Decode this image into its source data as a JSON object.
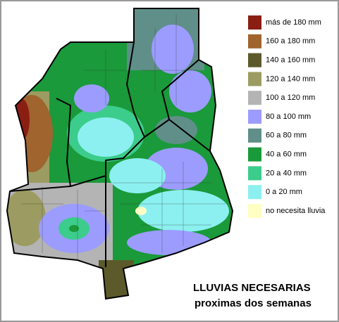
{
  "legend": {
    "items": [
      {
        "label": "más de 180 mm",
        "color": "#8b1e12"
      },
      {
        "label": "160 a 180 mm",
        "color": "#a0642e"
      },
      {
        "label": "140 a 160 mm",
        "color": "#5c5a2a"
      },
      {
        "label": "120 a 140 mm",
        "color": "#9c9c62"
      },
      {
        "label": "100 a 120 mm",
        "color": "#b4b4b4"
      },
      {
        "label": "80 a 100 mm",
        "color": "#9c9cff"
      },
      {
        "label": "60 a 80 mm",
        "color": "#5f8f88"
      },
      {
        "label": "40 a 60 mm",
        "color": "#1a9a3a"
      },
      {
        "label": "20 a 40 mm",
        "color": "#3ccc8c"
      },
      {
        "label": "0 a 20 mm",
        "color": "#8cf0f0"
      },
      {
        "label": "no necesita lluvia",
        "color": "#ffffc4"
      }
    ]
  },
  "caption": {
    "line1": "LLUVIAS NECESARIAS",
    "line2": "proximas dos semanas"
  }
}
